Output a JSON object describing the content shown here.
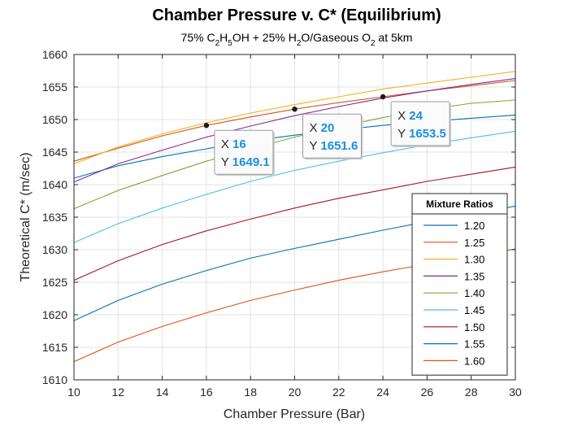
{
  "chart_data": {
    "type": "line",
    "title": "Chamber Pressure v. C* (Equilibrium)",
    "subtitle": {
      "prefix": "75% C",
      "sub1": "2",
      "mid1": "H",
      "sub2": "5",
      "mid2": "OH + 25% H",
      "sub3": "2",
      "mid3": "O/Gaseous O",
      "sub4": "2",
      "suffix": " at 5km"
    },
    "xlabel": "Chamber Pressure (Bar)",
    "ylabel": "Theoretical C* (m/sec)",
    "xlim": [
      10,
      30
    ],
    "ylim": [
      1610,
      1660
    ],
    "xticks": [
      10,
      12,
      14,
      16,
      18,
      20,
      22,
      24,
      26,
      28,
      30
    ],
    "yticks": [
      1610,
      1615,
      1620,
      1625,
      1630,
      1635,
      1640,
      1645,
      1650,
      1655,
      1660
    ],
    "grid": true,
    "legend": {
      "title": "Mixture Ratios",
      "placement": "lower-right"
    },
    "x": [
      10,
      12,
      14,
      16,
      18,
      20,
      22,
      24,
      26,
      28,
      30
    ],
    "series": [
      {
        "name": "1.20",
        "color": "#0072BD",
        "values": [
          1641.0,
          1642.9,
          1644.3,
          1645.5,
          1646.7,
          1647.6,
          1648.4,
          1649.1,
          1649.7,
          1650.2,
          1650.7
        ]
      },
      {
        "name": "1.25",
        "color": "#D95319",
        "values": [
          1643.6,
          1645.6,
          1647.5,
          1649.1,
          1650.4,
          1651.6,
          1652.6,
          1653.5,
          1654.4,
          1655.2,
          1656.0
        ]
      },
      {
        "name": "1.30",
        "color": "#EDB120",
        "values": [
          1643.2,
          1645.8,
          1647.8,
          1649.5,
          1651.0,
          1652.3,
          1653.5,
          1654.7,
          1655.6,
          1656.5,
          1657.4
        ]
      },
      {
        "name": "1.35",
        "color": "#7E2F8E",
        "values": [
          1640.4,
          1643.2,
          1645.3,
          1647.3,
          1649.0,
          1650.6,
          1652.0,
          1653.3,
          1654.4,
          1655.4,
          1656.3
        ]
      },
      {
        "name": "1.40",
        "color": "#77AC30",
        "values": [
          1636.3,
          1639.1,
          1641.4,
          1643.6,
          1645.5,
          1647.3,
          1648.9,
          1650.3,
          1651.5,
          1652.5,
          1653.0
        ]
      },
      {
        "name": "1.45",
        "color": "#4DBEEE",
        "values": [
          1631.1,
          1634.0,
          1636.4,
          1638.5,
          1640.5,
          1642.2,
          1643.6,
          1644.9,
          1646.1,
          1647.2,
          1648.2
        ]
      },
      {
        "name": "1.50",
        "color": "#A2142F",
        "values": [
          1625.3,
          1628.3,
          1630.8,
          1632.9,
          1634.7,
          1636.4,
          1637.9,
          1639.2,
          1640.5,
          1641.6,
          1642.7
        ]
      },
      {
        "name": "1.55",
        "color": "#0072BD",
        "values": [
          1619.1,
          1622.2,
          1624.7,
          1626.8,
          1628.7,
          1630.2,
          1631.6,
          1633.0,
          1634.3,
          1635.5,
          1636.7
        ]
      },
      {
        "name": "1.60",
        "color": "#D95319",
        "values": [
          1612.8,
          1615.8,
          1618.2,
          1620.3,
          1622.2,
          1623.8,
          1625.3,
          1626.6,
          1627.8,
          1629.0,
          1630.1
        ]
      }
    ],
    "datatips": [
      {
        "x_key": "X",
        "y_key": "Y",
        "x": "16",
        "y": "1649.1",
        "x_value": 16,
        "y_value": 1649.1
      },
      {
        "x_key": "X",
        "y_key": "Y",
        "x": "20",
        "y": "1651.6",
        "x_value": 20,
        "y_value": 1651.6
      },
      {
        "x_key": "X",
        "y_key": "Y",
        "x": "24",
        "y": "1653.5",
        "x_value": 24,
        "y_value": 1653.5
      }
    ]
  }
}
